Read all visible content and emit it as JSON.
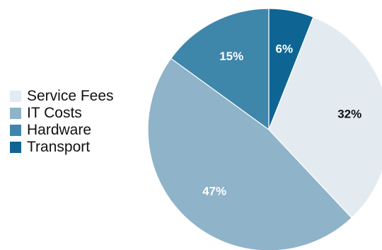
{
  "chart_data": {
    "type": "pie",
    "title": "",
    "categories": [
      "Transport",
      "Service Fees",
      "IT Costs",
      "Hardware"
    ],
    "values": [
      6,
      32,
      47,
      15
    ],
    "data_labels": [
      "6%",
      "32%",
      "47%",
      "15%"
    ],
    "colors": [
      "#0e6593",
      "#e3ebf1",
      "#8fb3c9",
      "#3f86ab"
    ],
    "label_colors": [
      "#ffffff",
      "#111111",
      "#ffffff",
      "#ffffff"
    ],
    "start_angle_deg": 0,
    "direction": "clockwise",
    "legend": {
      "placement": "left",
      "items": [
        {
          "label": "Service Fees",
          "color": "#e3ebf1"
        },
        {
          "label": "IT Costs",
          "color": "#8fb3c9"
        },
        {
          "label": "Hardware",
          "color": "#3f86ab"
        },
        {
          "label": "Transport",
          "color": "#0e6593"
        }
      ]
    }
  }
}
